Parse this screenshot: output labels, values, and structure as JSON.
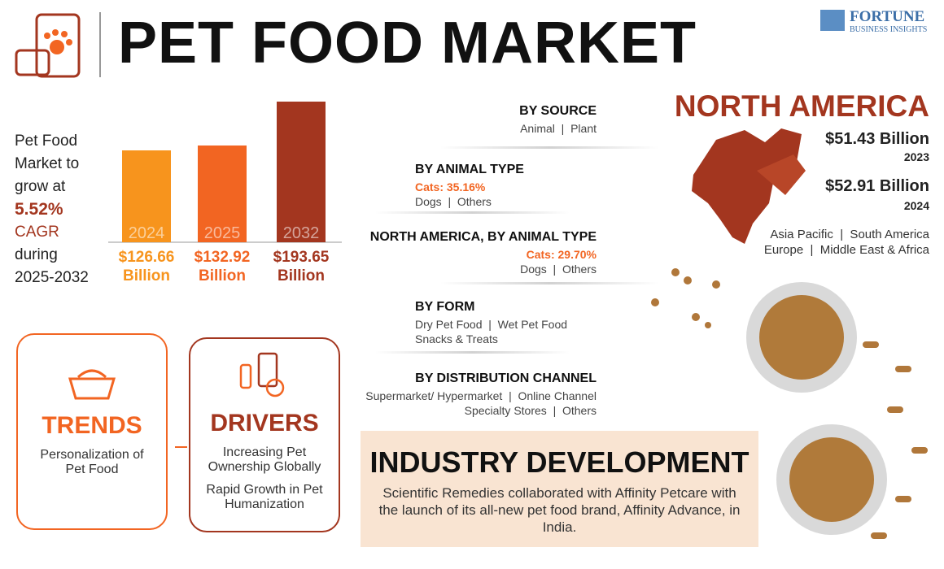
{
  "header": {
    "title": "PET FOOD MARKET",
    "brand": "FORTUNE",
    "brand_sub": "BUSINESS INSIGHTS"
  },
  "growth": {
    "lead": "Pet Food Market to grow at",
    "cagr": "5.52%",
    "cagr_label": "CAGR",
    "period": "during 2025-2032"
  },
  "chart_data": {
    "type": "bar",
    "categories": [
      "2024",
      "2025",
      "2032"
    ],
    "values": [
      126.66,
      132.92,
      193.65
    ],
    "value_labels": [
      "$126.66 Billion",
      "$132.92 Billion",
      "$193.65 Billion"
    ],
    "colors": [
      "#f7941d",
      "#f26522",
      "#a3361f"
    ]
  },
  "segments": [
    {
      "title": "BY SOURCE",
      "lines": [
        "Animal  |  Plant"
      ]
    },
    {
      "title": "BY ANIMAL TYPE",
      "highlight": "Cats: 35.16%",
      "lines": [
        "Dogs  |  Others"
      ]
    },
    {
      "title": "NORTH AMERICA, BY ANIMAL TYPE",
      "highlight": "Cats: 29.70%",
      "lines": [
        "Dogs  |  Others"
      ]
    },
    {
      "title": "BY FORM",
      "lines": [
        "Dry Pet Food  |  Wet Pet Food",
        "Snacks & Treats"
      ]
    },
    {
      "title": "BY DISTRIBUTION CHANNEL",
      "lines": [
        "Supermarket/ Hypermarket  |  Online Channel",
        "Specialty Stores  |  Others"
      ]
    }
  ],
  "region": {
    "name": "NORTH AMERICA",
    "stats": [
      {
        "value": "$51.43 Billion",
        "year": "2023"
      },
      {
        "value": "$52.91 Billion",
        "year": "2024"
      }
    ],
    "others": [
      "Asia Pacific  |  South America",
      "Europe  |  Middle East & Africa"
    ]
  },
  "trends": {
    "title": "TRENDS",
    "text": "Personalization of Pet Food"
  },
  "drivers": {
    "title": "DRIVERS",
    "items": [
      "Increasing Pet Ownership Globally",
      "Rapid Growth in Pet Humanization"
    ]
  },
  "industry": {
    "title": "INDUSTRY DEVELOPMENT",
    "text": "Scientific Remedies collaborated with Affinity Petcare with the launch of its all-new pet food brand, Affinity Advance, in India."
  }
}
